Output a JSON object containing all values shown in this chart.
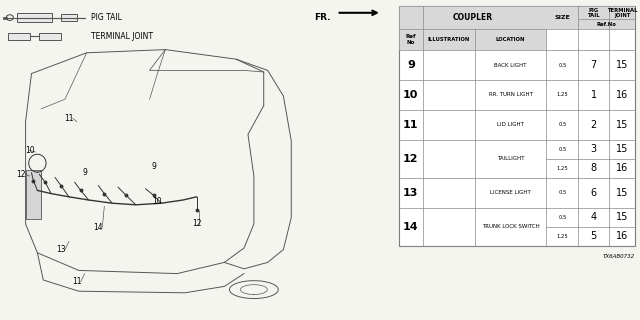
{
  "bg_color": "#f5f5f0",
  "car_bg": "#f5f5f0",
  "table_bg": "#ffffff",
  "line_color": "#606060",
  "border_color": "#888888",
  "header_bg": "#d8d8d8",
  "fr_label": "FR.",
  "diagram_code": "TX6AB0732",
  "table_rows": [
    {
      "ref": "9",
      "location": "BACK LIGHT",
      "size": "0.5",
      "pig": "7",
      "term": "15",
      "span": 1
    },
    {
      "ref": "10",
      "location": "RR. TURN LIGHT",
      "size": "1.25",
      "pig": "1",
      "term": "16",
      "span": 1
    },
    {
      "ref": "11",
      "location": "LID LIGHT",
      "size": "0.5",
      "pig": "2",
      "term": "15",
      "span": 1
    },
    {
      "ref": "12",
      "location": "TAILLIGHT",
      "size": "0.5",
      "pig": "3",
      "term": "15",
      "span": 2,
      "size2": "1.25",
      "pig2": "8",
      "term2": "16"
    },
    {
      "ref": "13",
      "location": "LICENSE LIGHT",
      "size": "0.5",
      "pig": "6",
      "term": "15",
      "span": 1
    },
    {
      "ref": "14",
      "location": "TRUNK LOCK SWITCH",
      "size": "0.5",
      "pig": "4",
      "term": "15",
      "span": 2,
      "size2": "1.25",
      "pig2": "5",
      "term2": "16"
    }
  ]
}
